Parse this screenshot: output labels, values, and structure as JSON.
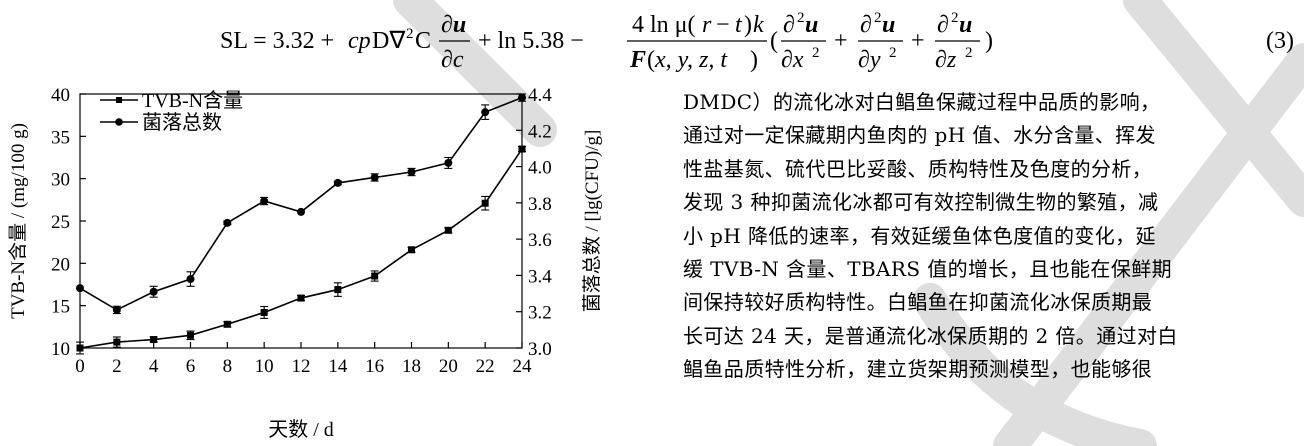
{
  "equation": {
    "text": "SL = 3.32 + cpD∇²C ∂u/∂c + ln 5.38 − 4 ln μ(r − t)k / F(x, y, z, t) (∂²u/∂x² + ∂²u/∂y² + ∂²u/∂z²)",
    "number": "(3)"
  },
  "chart_data": {
    "type": "line",
    "xlabel": "天数 / d",
    "ylabel_left": "TVB-N含量 / (mg/100 g)",
    "ylabel_right": "菌落总数 / [lg(CFU)/g]",
    "x": [
      0,
      2,
      4,
      6,
      8,
      10,
      12,
      14,
      16,
      18,
      20,
      22,
      24
    ],
    "xlim": [
      0,
      24
    ],
    "ylim_left": [
      10,
      40
    ],
    "ylim_right": [
      3.0,
      4.4
    ],
    "left_ticks": [
      10,
      15,
      20,
      25,
      30,
      35,
      40
    ],
    "right_ticks": [
      "3.0",
      "3.2",
      "3.4",
      "3.6",
      "3.8",
      "4.0",
      "4.2",
      "4.4"
    ],
    "legend_position": "top-left",
    "series": [
      {
        "name": "TVB-N含量",
        "marker": "square",
        "axis": "left",
        "values": [
          10.0,
          10.7,
          11.0,
          11.5,
          12.8,
          14.2,
          15.9,
          16.9,
          18.5,
          21.6,
          23.9,
          27.1,
          33.5
        ],
        "error": [
          0.7,
          0.6,
          0.3,
          0.5,
          0.3,
          0.7,
          0.3,
          0.8,
          0.6,
          0.3,
          0.3,
          0.8,
          0.3
        ]
      },
      {
        "name": "菌落总数",
        "marker": "circle",
        "axis": "right",
        "values": [
          3.33,
          3.21,
          3.31,
          3.38,
          3.69,
          3.81,
          3.75,
          3.91,
          3.94,
          3.97,
          4.02,
          4.3,
          4.38
        ],
        "error": [
          0.0,
          0.02,
          0.03,
          0.04,
          0.01,
          0.02,
          0.0,
          0.01,
          0.02,
          0.02,
          0.03,
          0.04,
          0.02
        ]
      }
    ]
  },
  "paragraph": {
    "lines": [
      "DMDC）的流化冰对白鲳鱼保藏过程中品质的影响，",
      "通过对一定保藏期内鱼肉的 pH 值、水分含量、挥发",
      "性盐基氮、硫代巴比妥酸、质构特性及色度的分析，",
      "发现 3 种抑菌流化冰都可有效控制微生物的繁殖，减",
      "小 pH 降低的速率，有效延缓鱼体色度值的变化，延",
      "缓 TVB-N 含量、TBARS 值的增长，且也能在保鲜期",
      "间保持较好质构特性。白鲳鱼在抑菌流化冰保质期最",
      "长可达 24 天，是普通流化冰保质期的 2 倍。通过对白",
      "鲳鱼品质特性分析，建立货架期预测模型，也能够很"
    ]
  },
  "colors": {
    "ink": "#000000",
    "watermark": "#d9d9d9"
  }
}
